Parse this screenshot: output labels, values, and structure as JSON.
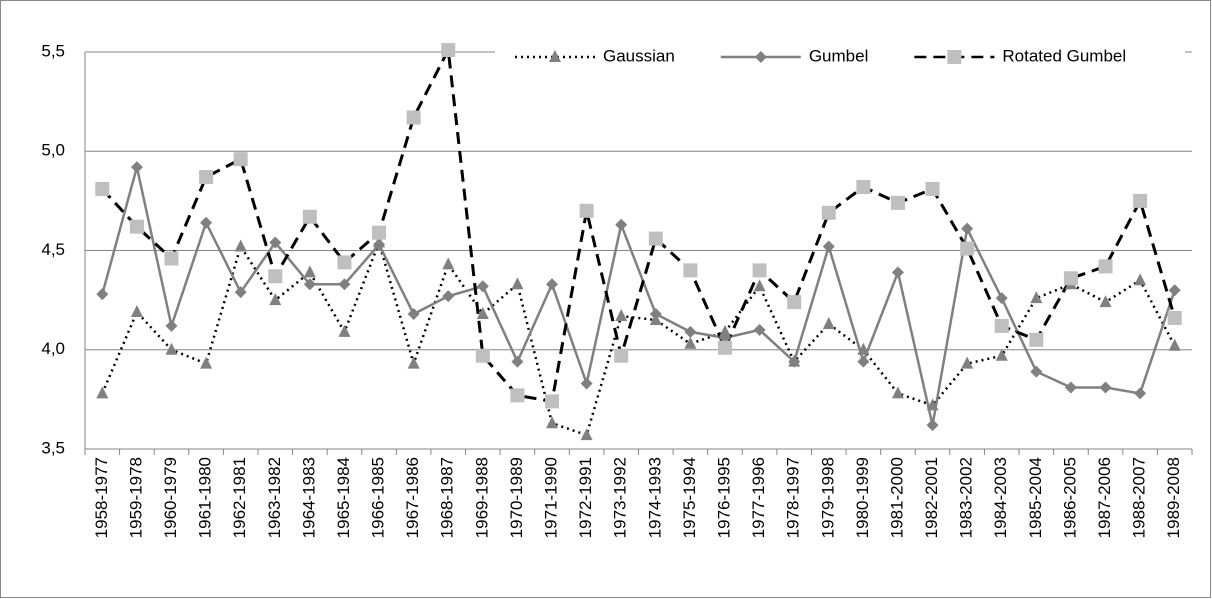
{
  "chart_data": {
    "type": "line",
    "categories": [
      "1958-1977",
      "1959-1978",
      "1960-1979",
      "1961-1980",
      "1962-1981",
      "1963-1982",
      "1964-1983",
      "1965-1984",
      "1966-1985",
      "1967-1986",
      "1968-1987",
      "1969-1988",
      "1970-1989",
      "1971-1990",
      "1972-1991",
      "1973-1992",
      "1974-1993",
      "1975-1994",
      "1976-1995",
      "1977-1996",
      "1978-1997",
      "1979-1998",
      "1980-1999",
      "1981-2000",
      "1982-2001",
      "1983-2002",
      "1984-2003",
      "1985-2004",
      "1986-2005",
      "1987-2006",
      "1988-2007",
      "1989-2008"
    ],
    "series": [
      {
        "name": "Gaussian",
        "color": "#808080",
        "line_color": "#000000",
        "line_style": "dotted",
        "marker": "triangle",
        "values": [
          3.78,
          4.19,
          4.0,
          3.93,
          4.52,
          4.25,
          4.39,
          4.09,
          4.54,
          3.93,
          4.43,
          4.18,
          4.33,
          3.63,
          3.57,
          4.17,
          4.15,
          4.03,
          4.09,
          4.32,
          3.94,
          4.13,
          4.0,
          3.78,
          3.72,
          3.93,
          3.97,
          4.26,
          4.33,
          4.24,
          4.35,
          4.02
        ]
      },
      {
        "name": "Gumbel",
        "color": "#808080",
        "line_color": "#808080",
        "line_style": "solid",
        "marker": "diamond",
        "values": [
          4.28,
          4.92,
          4.12,
          4.64,
          4.29,
          4.54,
          4.33,
          4.33,
          4.53,
          4.18,
          4.27,
          4.32,
          3.94,
          4.33,
          3.83,
          4.63,
          4.18,
          4.09,
          4.06,
          4.1,
          3.94,
          4.52,
          3.94,
          4.39,
          3.62,
          4.61,
          4.26,
          3.89,
          3.81,
          3.81,
          3.78,
          4.3
        ]
      },
      {
        "name": "Rotated Gumbel",
        "color": "#bfbfbf",
        "line_color": "#000000",
        "line_style": "dashed",
        "marker": "square",
        "values": [
          4.81,
          4.62,
          4.46,
          4.87,
          4.96,
          4.37,
          4.67,
          4.44,
          4.59,
          5.17,
          5.51,
          3.97,
          3.77,
          3.74,
          4.7,
          3.97,
          4.56,
          4.4,
          4.01,
          4.4,
          4.24,
          4.69,
          4.82,
          4.74,
          4.81,
          4.51,
          4.12,
          4.05,
          4.36,
          4.42,
          4.75,
          4.16
        ]
      }
    ],
    "ylim": [
      3.5,
      5.5
    ],
    "yticks": [
      {
        "value": 3.5,
        "label": "3,5"
      },
      {
        "value": 4.0,
        "label": "4,0"
      },
      {
        "value": 4.5,
        "label": "4,5"
      },
      {
        "value": 5.0,
        "label": "5,0"
      },
      {
        "value": 5.5,
        "label": "5,5"
      }
    ],
    "grid": true,
    "legend": "top-right"
  }
}
